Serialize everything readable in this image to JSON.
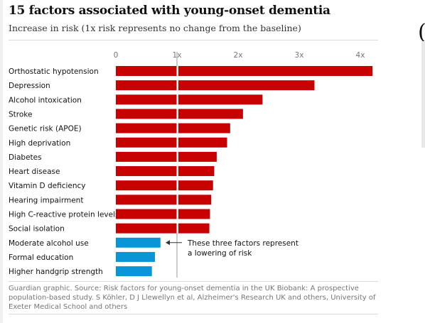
{
  "header": {
    "title": "15 factors associated with young-onset dementia",
    "subtitle": "Increase in risk (1x risk represents no change from the baseline)"
  },
  "footer": {
    "source": "Guardian graphic. Source: Risk factors for young-onset dementia in the UK Biobank: A prospective population-based study. S Köhler, D J Llewellyn et al, Alzheimer's Research UK and others, University of Exeter Medical School and others"
  },
  "colors": {
    "increase": "#c70000",
    "decrease": "#0a96d6",
    "baseline": "#999999"
  },
  "chart_data": {
    "type": "bar",
    "orientation": "horizontal",
    "xlim": [
      0,
      4.2
    ],
    "ticks": [
      {
        "value": 0,
        "label": "0"
      },
      {
        "value": 1,
        "label": "1x"
      },
      {
        "value": 2,
        "label": "2x"
      },
      {
        "value": 3,
        "label": "3x"
      },
      {
        "value": 4,
        "label": "4x"
      }
    ],
    "baseline": 1,
    "categories": [
      "Orthostatic hypotension",
      "Depression",
      "Alcohol intoxication",
      "Stroke",
      "Genetic risk (APOE)",
      "High deprivation",
      "Diabetes",
      "Heart disease",
      "Vitamin D deficiency",
      "Hearing impairment",
      "High C-reactive protein levels",
      "Social isolation",
      "Moderate alcohol use",
      "Formal education",
      "Higher handgrip strength"
    ],
    "values": [
      4.2,
      3.25,
      2.4,
      2.08,
      1.87,
      1.82,
      1.65,
      1.61,
      1.59,
      1.56,
      1.54,
      1.53,
      0.73,
      0.64,
      0.59
    ],
    "annotation": {
      "lines": [
        "These three factors represent",
        "a lowering of risk"
      ],
      "points_to": "Moderate alcohol use"
    },
    "legend": null,
    "grid": false
  }
}
